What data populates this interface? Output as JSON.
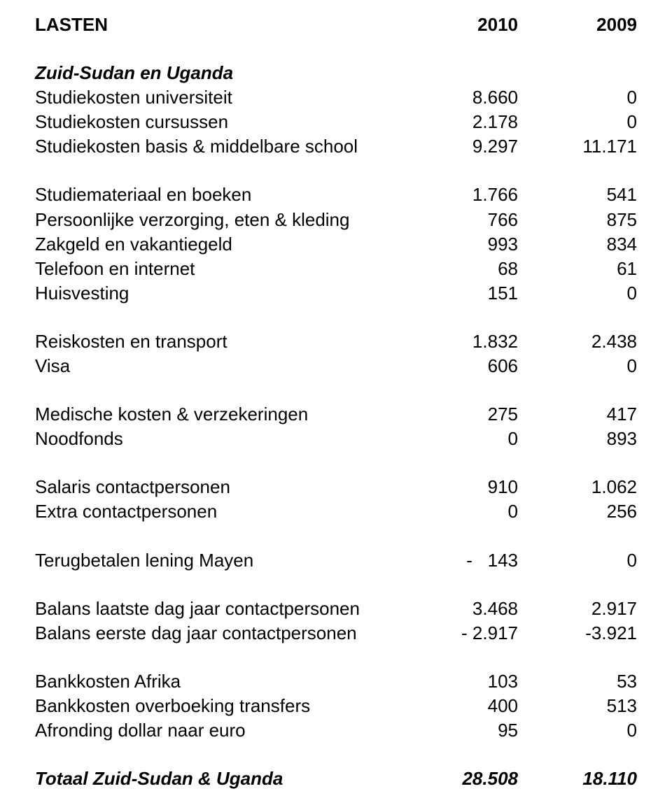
{
  "header": {
    "title": "LASTEN",
    "col2010": "2010",
    "col2009": "2009"
  },
  "section1_title": "Zuid-Sudan en Uganda",
  "rows": {
    "r1": {
      "label": "Studiekosten universiteit",
      "c1": "8.660",
      "c2": "0"
    },
    "r2": {
      "label": "Studiekosten cursussen",
      "c1": "2.178",
      "c2": "0"
    },
    "r3": {
      "label": "Studiekosten basis & middelbare school",
      "c1": "9.297",
      "c2": "11.171"
    },
    "r4": {
      "label": "Studiemateriaal en boeken",
      "c1": "1.766",
      "c2": "541"
    },
    "r5": {
      "label": "Persoonlijke verzorging, eten & kleding",
      "c1": "766",
      "c2": "875"
    },
    "r6": {
      "label": "Zakgeld en vakantiegeld",
      "c1": "993",
      "c2": "834"
    },
    "r7": {
      "label": "Telefoon en internet",
      "c1": "68",
      "c2": "61"
    },
    "r8": {
      "label": "Huisvesting",
      "c1": "151",
      "c2": "0"
    },
    "r9": {
      "label": "Reiskosten en transport",
      "c1": "1.832",
      "c2": "2.438"
    },
    "r10": {
      "label": "Visa",
      "c1": "606",
      "c2": "0"
    },
    "r11": {
      "label": "Medische kosten & verzekeringen",
      "c1": "275",
      "c2": "417"
    },
    "r12": {
      "label": "Noodfonds",
      "c1": "0",
      "c2": "893"
    },
    "r13": {
      "label": "Salaris contactpersonen",
      "c1": "910",
      "c2": "1.062"
    },
    "r14": {
      "label": "Extra contactpersonen",
      "c1": "0",
      "c2": "256"
    },
    "r15": {
      "label": "Terugbetalen lening Mayen",
      "c1": "-   143",
      "c2": "0"
    },
    "r16": {
      "label": "Balans laatste dag jaar contactpersonen",
      "c1": "3.468",
      "c2": "2.917"
    },
    "r17": {
      "label": "Balans eerste dag jaar contactpersonen",
      "c1": "- 2.917",
      "c2": "-3.921"
    },
    "r18": {
      "label": "Bankkosten Afrika",
      "c1": "103",
      "c2": "53"
    },
    "r19": {
      "label": "Bankkosten overboeking transfers",
      "c1": "400",
      "c2": "513"
    },
    "r20": {
      "label": "Afronding dollar naar euro",
      "c1": "95",
      "c2": "0"
    }
  },
  "total": {
    "label": "Totaal Zuid-Sudan & Uganda",
    "c1": "28.508",
    "c2": "18.110"
  },
  "style": {
    "text_color": "#000000",
    "background_color": "#ffffff",
    "font_family": "Verdana",
    "base_fontsize_pt": 20,
    "bold_weight": 700,
    "col_label_align": "left",
    "col_num_align": "right"
  }
}
